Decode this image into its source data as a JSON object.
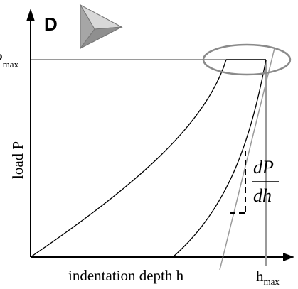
{
  "panel_label": "D",
  "indenter_icon": "three-sided-pyramid-indenter-icon",
  "labels": {
    "y_axis": "load P",
    "x_axis": "indentation depth h",
    "p_max_main": "P",
    "p_max_sub": "max",
    "h_max_main": "h",
    "h_max_sub": "max",
    "slope_num": "dP",
    "slope_den": "dh"
  },
  "colors": {
    "curves": "#000000",
    "guides": "#9a9a9a",
    "highlight_ellipse": "#8a8a8a",
    "indenter_face_light": "#d8d8d8",
    "indenter_face_mid": "#b5b5b5",
    "indenter_face_dark": "#8f8f8f"
  }
}
